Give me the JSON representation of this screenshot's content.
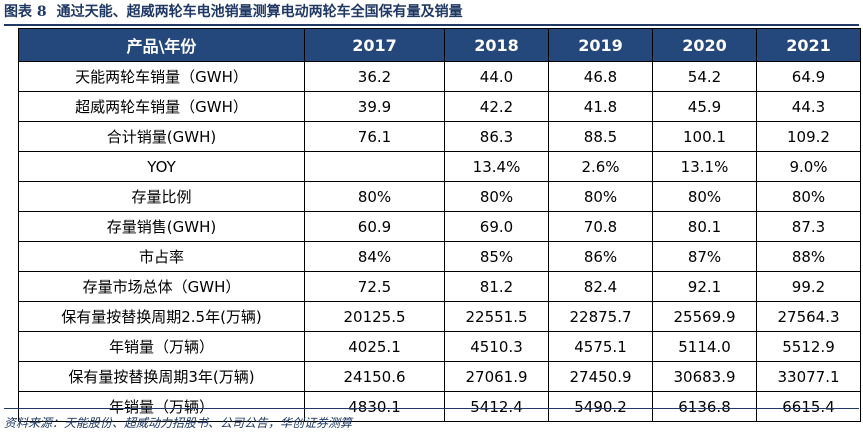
{
  "caption": {
    "figure_no": "图表 8",
    "title": "通过天能、超威两轮车电池销量测算电动两轮车全国保有量及销量"
  },
  "table": {
    "header": [
      "产品\\年份",
      "2017",
      "2018",
      "2019",
      "2020",
      "2021"
    ],
    "rows": [
      [
        "天能两轮车销量（GWH）",
        "36.2",
        "44.0",
        "46.8",
        "54.2",
        "64.9"
      ],
      [
        "超威两轮车销量（GWH）",
        "39.9",
        "42.2",
        "41.8",
        "45.9",
        "44.3"
      ],
      [
        "合计销量(GWH)",
        "76.1",
        "86.3",
        "88.5",
        "100.1",
        "109.2"
      ],
      [
        "YOY",
        "",
        "13.4%",
        "2.6%",
        "13.1%",
        "9.0%"
      ],
      [
        "存量比例",
        "80%",
        "80%",
        "80%",
        "80%",
        "80%"
      ],
      [
        "存量销售(GWH)",
        "60.9",
        "69.0",
        "70.8",
        "80.1",
        "87.3"
      ],
      [
        "市占率",
        "84%",
        "85%",
        "86%",
        "87%",
        "88%"
      ],
      [
        "存量市场总体（GWH）",
        "72.5",
        "81.2",
        "82.4",
        "92.1",
        "99.2"
      ],
      [
        "保有量按替换周期2.5年(万辆)",
        "20125.5",
        "22551.5",
        "22875.7",
        "25569.9",
        "27564.3"
      ],
      [
        "年销量（万辆）",
        "4025.1",
        "4510.3",
        "4575.1",
        "5114.0",
        "5512.9"
      ],
      [
        "保有量按替换周期3年(万辆)",
        "24150.6",
        "27061.9",
        "27450.9",
        "30683.9",
        "33077.1"
      ],
      [
        "年销量（万辆）",
        "4830.1",
        "5412.4",
        "5490.2",
        "6136.8",
        "6615.4"
      ]
    ]
  },
  "source": "资料来源：天能股份、超威动力招股书、公司公告，华创证券测算",
  "colors": {
    "header_bg": "#24487c",
    "header_text": "#ffffff",
    "caption": "#1f3864"
  }
}
